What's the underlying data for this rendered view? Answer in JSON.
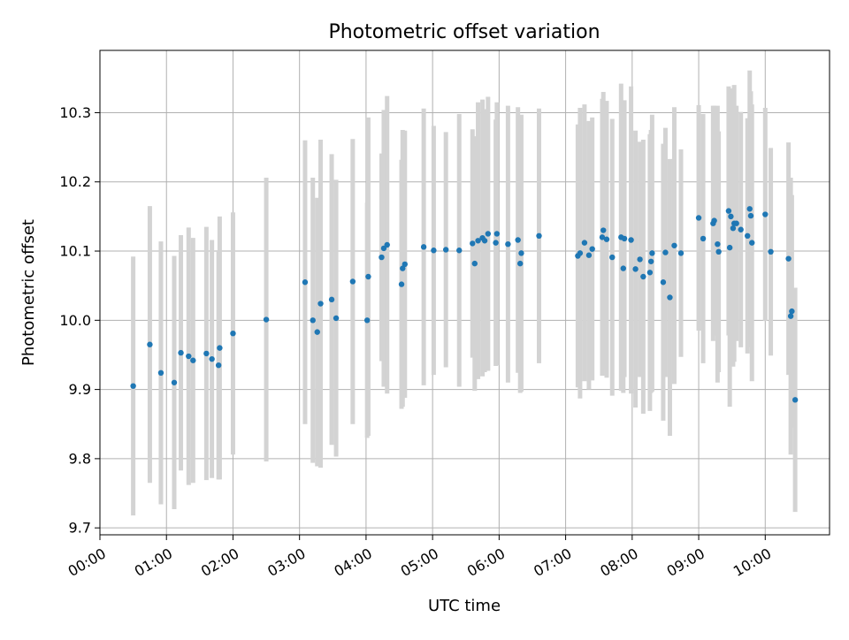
{
  "chart_data": {
    "type": "scatter",
    "title": "Photometric offset variation",
    "xlabel": "UTC time",
    "ylabel": "Photometric offset",
    "x_unit": "UTC time (HH:MM)",
    "xlim": [
      "00:00",
      "10:58"
    ],
    "ylim": [
      9.69,
      10.39
    ],
    "x_ticks": [
      "00:00",
      "01:00",
      "02:00",
      "03:00",
      "04:00",
      "05:00",
      "06:00",
      "07:00",
      "08:00",
      "09:00",
      "10:00"
    ],
    "y_ticks": [
      "9.7",
      "9.8",
      "9.9",
      "10.0",
      "10.1",
      "10.2",
      "10.3"
    ],
    "grid": true,
    "legend": "none",
    "colors": {
      "point": "#1f77b4",
      "errorbar": "#d3d3d3",
      "grid": "#b0b0b0",
      "axis": "#000000"
    },
    "series": [
      {
        "points": [
          {
            "t": "00:30",
            "y": 9.905,
            "err": 0.187
          },
          {
            "t": "00:45",
            "y": 9.965,
            "err": 0.2
          },
          {
            "t": "00:55",
            "y": 9.924,
            "err": 0.19
          },
          {
            "t": "01:07",
            "y": 9.91,
            "err": 0.183
          },
          {
            "t": "01:13",
            "y": 9.953,
            "err": 0.17
          },
          {
            "t": "01:20",
            "y": 9.948,
            "err": 0.186
          },
          {
            "t": "01:24",
            "y": 9.942,
            "err": 0.177
          },
          {
            "t": "01:36",
            "y": 9.952,
            "err": 0.183
          },
          {
            "t": "01:41",
            "y": 9.944,
            "err": 0.172
          },
          {
            "t": "01:47",
            "y": 9.935,
            "err": 0.165
          },
          {
            "t": "01:48",
            "y": 9.96,
            "err": 0.19
          },
          {
            "t": "02:00",
            "y": 9.981,
            "err": 0.175
          },
          {
            "t": "02:30",
            "y": 10.001,
            "err": 0.205
          },
          {
            "t": "03:05",
            "y": 10.055,
            "err": 0.205
          },
          {
            "t": "03:12",
            "y": 10.0,
            "err": 0.206
          },
          {
            "t": "03:16",
            "y": 9.983,
            "err": 0.194
          },
          {
            "t": "03:19",
            "y": 10.024,
            "err": 0.237
          },
          {
            "t": "03:29",
            "y": 10.03,
            "err": 0.21
          },
          {
            "t": "03:33",
            "y": 10.003,
            "err": 0.2
          },
          {
            "t": "03:48",
            "y": 10.056,
            "err": 0.206
          },
          {
            "t": "04:01",
            "y": 10.0,
            "err": 0.17
          },
          {
            "t": "04:02",
            "y": 10.063,
            "err": 0.23
          },
          {
            "t": "04:14",
            "y": 10.091,
            "err": 0.15
          },
          {
            "t": "04:16",
            "y": 10.104,
            "err": 0.2
          },
          {
            "t": "04:19",
            "y": 10.109,
            "err": 0.215
          },
          {
            "t": "04:32",
            "y": 10.052,
            "err": 0.18
          },
          {
            "t": "04:33",
            "y": 10.075,
            "err": 0.2
          },
          {
            "t": "04:35",
            "y": 10.081,
            "err": 0.193
          },
          {
            "t": "04:52",
            "y": 10.106,
            "err": 0.2
          },
          {
            "t": "05:01",
            "y": 10.101,
            "err": 0.18
          },
          {
            "t": "05:12",
            "y": 10.102,
            "err": 0.17
          },
          {
            "t": "05:24",
            "y": 10.101,
            "err": 0.197
          },
          {
            "t": "05:36",
            "y": 10.111,
            "err": 0.165
          },
          {
            "t": "05:38",
            "y": 10.082,
            "err": 0.184
          },
          {
            "t": "05:41",
            "y": 10.115,
            "err": 0.2
          },
          {
            "t": "05:45",
            "y": 10.119,
            "err": 0.2
          },
          {
            "t": "05:47",
            "y": 10.115,
            "err": 0.19
          },
          {
            "t": "05:50",
            "y": 10.125,
            "err": 0.198
          },
          {
            "t": "05:57",
            "y": 10.112,
            "err": 0.178
          },
          {
            "t": "05:58",
            "y": 10.125,
            "err": 0.19
          },
          {
            "t": "06:08",
            "y": 10.11,
            "err": 0.2
          },
          {
            "t": "06:17",
            "y": 10.116,
            "err": 0.192
          },
          {
            "t": "06:19",
            "y": 10.082,
            "err": 0.187
          },
          {
            "t": "06:20",
            "y": 10.097,
            "err": 0.2
          },
          {
            "t": "06:36",
            "y": 10.122,
            "err": 0.184
          },
          {
            "t": "07:11",
            "y": 10.093,
            "err": 0.19
          },
          {
            "t": "07:13",
            "y": 10.097,
            "err": 0.21
          },
          {
            "t": "07:17",
            "y": 10.112,
            "err": 0.2
          },
          {
            "t": "07:21",
            "y": 10.094,
            "err": 0.194
          },
          {
            "t": "07:24",
            "y": 10.103,
            "err": 0.19
          },
          {
            "t": "07:33",
            "y": 10.12,
            "err": 0.2
          },
          {
            "t": "07:34",
            "y": 10.13,
            "err": 0.2
          },
          {
            "t": "07:37",
            "y": 10.117,
            "err": 0.2
          },
          {
            "t": "07:42",
            "y": 10.091,
            "err": 0.2
          },
          {
            "t": "07:50",
            "y": 10.12,
            "err": 0.222
          },
          {
            "t": "07:52",
            "y": 10.075,
            "err": 0.18
          },
          {
            "t": "07:53",
            "y": 10.118,
            "err": 0.2
          },
          {
            "t": "07:59",
            "y": 10.116,
            "err": 0.222
          },
          {
            "t": "08:03",
            "y": 10.074,
            "err": 0.2
          },
          {
            "t": "08:07",
            "y": 10.088,
            "err": 0.17
          },
          {
            "t": "08:10",
            "y": 10.063,
            "err": 0.198
          },
          {
            "t": "08:16",
            "y": 10.069,
            "err": 0.2
          },
          {
            "t": "08:17",
            "y": 10.085,
            "err": 0.19
          },
          {
            "t": "08:18",
            "y": 10.097,
            "err": 0.2
          },
          {
            "t": "08:28",
            "y": 10.055,
            "err": 0.2
          },
          {
            "t": "08:30",
            "y": 10.098,
            "err": 0.18
          },
          {
            "t": "08:34",
            "y": 10.033,
            "err": 0.2
          },
          {
            "t": "08:38",
            "y": 10.108,
            "err": 0.2
          },
          {
            "t": "08:44",
            "y": 10.097,
            "err": 0.15
          },
          {
            "t": "09:00",
            "y": 10.148,
            "err": 0.163
          },
          {
            "t": "09:04",
            "y": 10.118,
            "err": 0.18
          },
          {
            "t": "09:13",
            "y": 10.14,
            "err": 0.17
          },
          {
            "t": "09:14",
            "y": 10.144,
            "err": 0.166
          },
          {
            "t": "09:17",
            "y": 10.11,
            "err": 0.2
          },
          {
            "t": "09:18",
            "y": 10.099,
            "err": 0.174
          },
          {
            "t": "09:27",
            "y": 10.158,
            "err": 0.18
          },
          {
            "t": "09:28",
            "y": 10.105,
            "err": 0.23
          },
          {
            "t": "09:29",
            "y": 10.15,
            "err": 0.184
          },
          {
            "t": "09:31",
            "y": 10.133,
            "err": 0.2
          },
          {
            "t": "09:32",
            "y": 10.14,
            "err": 0.2
          },
          {
            "t": "09:34",
            "y": 10.14,
            "err": 0.17
          },
          {
            "t": "09:38",
            "y": 10.131,
            "err": 0.17
          },
          {
            "t": "09:44",
            "y": 10.122,
            "err": 0.17
          },
          {
            "t": "09:46",
            "y": 10.161,
            "err": 0.2
          },
          {
            "t": "09:47",
            "y": 10.151,
            "err": 0.18
          },
          {
            "t": "09:48",
            "y": 10.112,
            "err": 0.2
          },
          {
            "t": "10:00",
            "y": 10.153,
            "err": 0.154
          },
          {
            "t": "10:05",
            "y": 10.099,
            "err": 0.15
          },
          {
            "t": "10:21",
            "y": 10.089,
            "err": 0.168
          },
          {
            "t": "10:23",
            "y": 10.006,
            "err": 0.2
          },
          {
            "t": "10:24",
            "y": 10.013,
            "err": 0.168
          },
          {
            "t": "10:27",
            "y": 9.885,
            "err": 0.162
          }
        ]
      }
    ]
  }
}
